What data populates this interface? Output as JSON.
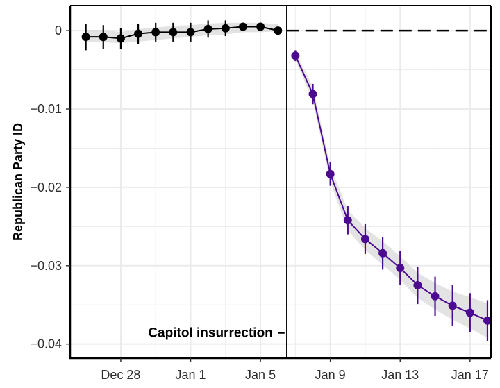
{
  "chart_data": {
    "type": "line",
    "title": "",
    "xlabel": "",
    "ylabel": "Republican Party ID",
    "x_ticks": [
      "Dec 28",
      "Jan 1",
      "Jan 5",
      "Jan 9",
      "Jan 13",
      "Jan 17"
    ],
    "x_tick_days": [
      2,
      6,
      10,
      14,
      18,
      22
    ],
    "y_ticks": [
      0,
      -0.01,
      -0.02,
      -0.03,
      -0.04
    ],
    "y_tick_labels": [
      "0",
      "−0.01",
      "−0.02",
      "−0.03",
      "−0.04"
    ],
    "xlim": [
      -0.9,
      23.2
    ],
    "ylim": [
      -0.0418,
      0.0032
    ],
    "grid": true,
    "colors": {
      "pre": "#000000",
      "post": "#4b0a8f",
      "band": "#d9d9d9",
      "grid": "#ebebeb"
    },
    "event": {
      "x": 11.5,
      "label": "Capitol insurrection",
      "y": -0.0385,
      "reference_y": 0
    },
    "series": [
      {
        "period": "pre",
        "x": [
          0,
          1,
          2,
          3,
          4,
          5,
          6,
          7,
          8,
          9,
          10,
          11
        ],
        "y": [
          -0.0008,
          -0.0008,
          -0.001,
          -0.0004,
          -0.0002,
          -0.0002,
          -0.0002,
          0.0002,
          0.0003,
          0.0005,
          0.0005,
          0.0
        ],
        "err": [
          0.0017,
          0.0015,
          0.0013,
          0.0013,
          0.0012,
          0.0012,
          0.0012,
          0.0011,
          0.001,
          0.0004,
          0.0004,
          0.0
        ],
        "band_lower": [
          -0.0015,
          -0.0015,
          -0.0016,
          -0.0014,
          -0.0012,
          -0.001,
          -0.0008,
          -0.0006,
          -0.0005,
          -0.0002,
          -0.0002,
          -0.0001
        ],
        "band_upper": [
          0.0001,
          0.0001,
          -0.0002,
          0.0002,
          0.0004,
          0.0006,
          0.0007,
          0.0009,
          0.001,
          0.001,
          0.001,
          0.0008
        ]
      },
      {
        "period": "post",
        "x": [
          12,
          13,
          14,
          15,
          16,
          17,
          18,
          19,
          20,
          21,
          22,
          23
        ],
        "y": [
          -0.0032,
          -0.0081,
          -0.0183,
          -0.0242,
          -0.0266,
          -0.0284,
          -0.0303,
          -0.0325,
          -0.0339,
          -0.0351,
          -0.036,
          -0.037
        ],
        "err": [
          0.0007,
          0.0013,
          0.0015,
          0.0018,
          0.0019,
          0.0021,
          0.0022,
          0.0024,
          0.0025,
          0.0026,
          0.0025,
          0.0026
        ],
        "band_lower": [
          -0.0037,
          -0.009,
          -0.0193,
          -0.0255,
          -0.028,
          -0.0299,
          -0.0318,
          -0.0341,
          -0.0356,
          -0.0369,
          -0.038,
          -0.0392
        ],
        "band_upper": [
          -0.0027,
          -0.0071,
          -0.0173,
          -0.0229,
          -0.0252,
          -0.0269,
          -0.0288,
          -0.0309,
          -0.0322,
          -0.0333,
          -0.034,
          -0.0348
        ]
      }
    ]
  }
}
